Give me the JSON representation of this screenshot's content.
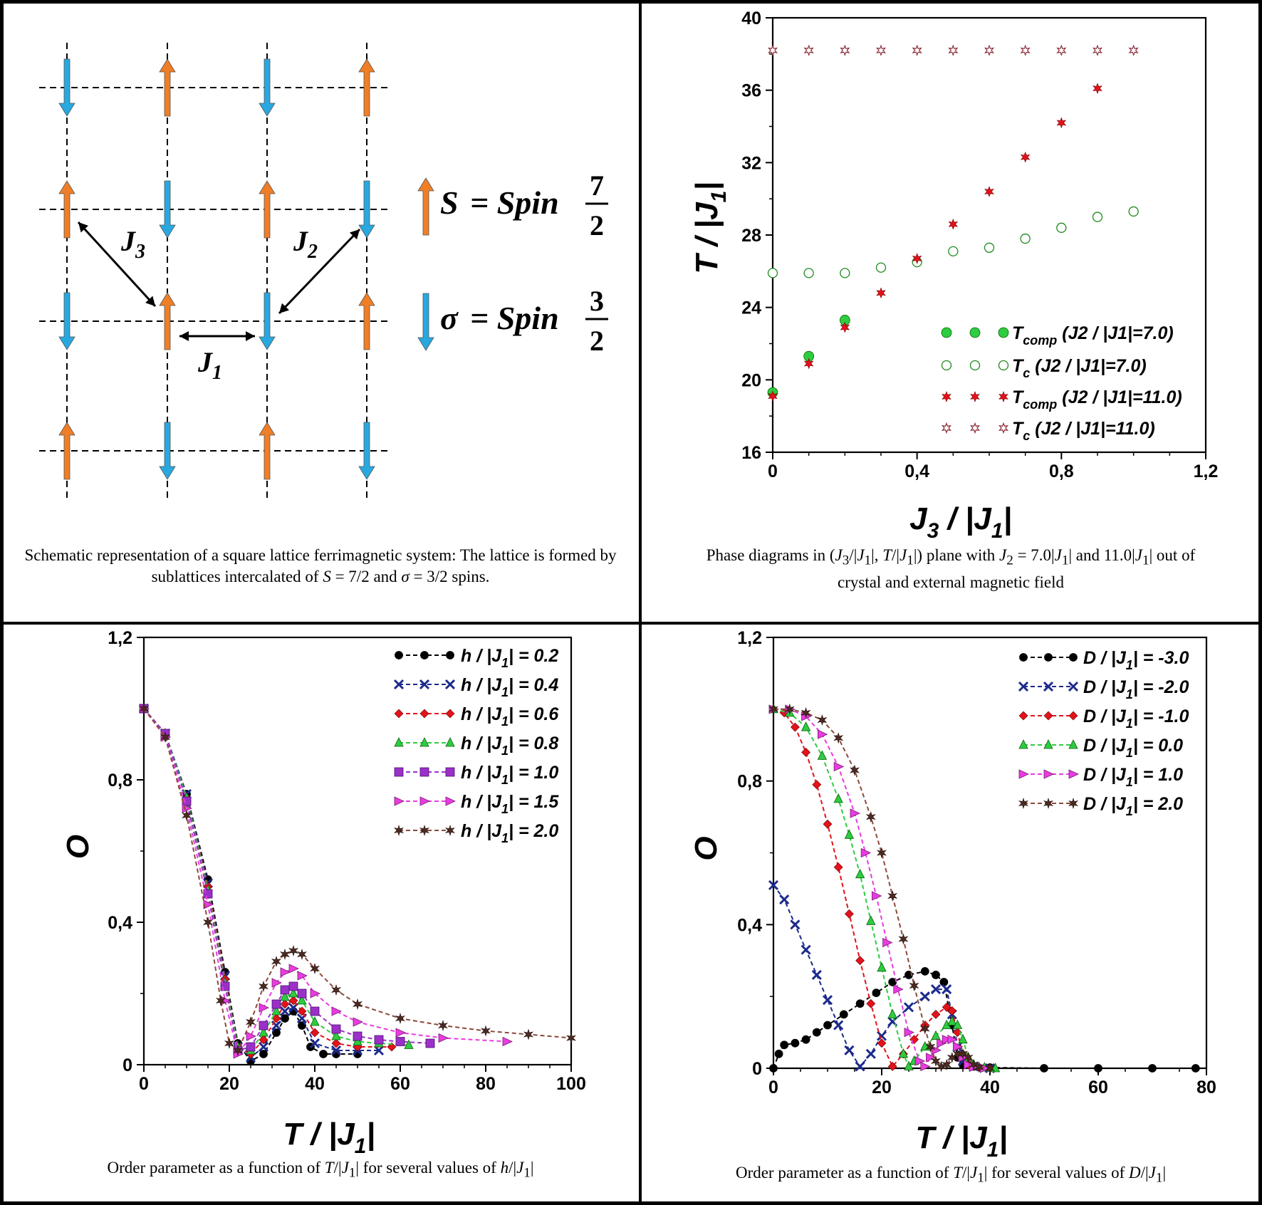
{
  "panels": {
    "top_left": {
      "caption_prefix": "Schematic representation of a square lattice ferrimagnetic system: The lattice is formed by sublattices intercalated of ",
      "caption_S": "S",
      "caption_S_value": " = 7/2",
      "caption_and": " and ",
      "caption_sigma": "σ",
      "caption_sigma_value": " = 3/2",
      "caption_suffix": " spins.",
      "couplings": {
        "J1": "J",
        "J1_sub": "1",
        "J2": "J",
        "J2_sub": "2",
        "J3": "J",
        "J3_sub": "3"
      },
      "legend": {
        "s_symbol": "S",
        "s_eq": "= Spin",
        "s_num": "7",
        "s_den": "2",
        "sigma_symbol": "σ",
        "sigma_eq": "= Spin",
        "sigma_num": "3",
        "sigma_den": "2"
      },
      "colors": {
        "spin_S": "#F07E26",
        "spin_sigma": "#29A8E0"
      }
    },
    "top_right": {
      "caption_line1_a": "Phase diagrams in (",
      "caption_line1_b": "J",
      "caption_line1_c": "3",
      "caption_line1_d": "/|",
      "caption_line1_e": "J",
      "caption_line1_f": "1",
      "caption_line1_g": "|, ",
      "caption_line1_h": "T",
      "caption_line1_i": "/|",
      "caption_line1_j": "J",
      "caption_line1_k": "1",
      "caption_line1_l": "|) plane with ",
      "caption_line1_m": "J",
      "caption_line1_n": "2",
      "caption_line1_o": " = 7.0|",
      "caption_line1_p": "J",
      "caption_line1_q": "1",
      "caption_line1_r": "| and 11.0|",
      "caption_line1_s": "J",
      "caption_line1_t": "1",
      "caption_line1_u": "| out of",
      "caption_line2": "crystal and external magnetic field"
    },
    "bottom_left": {
      "caption_a": "Order parameter as a function of ",
      "caption_b": "T",
      "caption_c": "/|",
      "caption_d": "J",
      "caption_e": "1",
      "caption_f": "|  for several values of ",
      "caption_g": "h",
      "caption_h": "/|",
      "caption_i": "J",
      "caption_j": "1",
      "caption_k": "|"
    },
    "bottom_right": {
      "caption_a": "Order parameter as a function of ",
      "caption_b": "T",
      "caption_c": "/|",
      "caption_d": "J",
      "caption_e": "1",
      "caption_f": "|  for several values of ",
      "caption_g": "D",
      "caption_h": "/|",
      "caption_i": "J",
      "caption_j": "1",
      "caption_k": "|"
    }
  },
  "chart_data": [
    {
      "id": "phase",
      "type": "scatter",
      "xlabel": "J3 / |J1|",
      "ylabel": "T / |J1|",
      "xlim": [
        0,
        1.2
      ],
      "ylim": [
        16,
        40
      ],
      "xticks": [
        "0",
        "0,4",
        "0,8",
        "1,2"
      ],
      "xtick_values": [
        0,
        0.4,
        0.8,
        1.2
      ],
      "yticks": [
        "16",
        "20",
        "24",
        "28",
        "32",
        "36",
        "40"
      ],
      "ytick_values": [
        16,
        20,
        24,
        28,
        32,
        36,
        40
      ],
      "legend_position": "bottom-right",
      "series": [
        {
          "name": "T",
          "sub": "comp",
          "rest": " (J2 / |J1|=7.0)",
          "marker": "circle-filled",
          "color": "#2ECC40",
          "x": [
            0,
            0.1,
            0.2
          ],
          "y": [
            19.3,
            21.3,
            23.3
          ]
        },
        {
          "name": "T",
          "sub": "c",
          "rest": " (J2 / |J1|=7.0)",
          "marker": "circle-open",
          "color": "#1E8B1E",
          "x": [
            0,
            0.1,
            0.2,
            0.3,
            0.4,
            0.5,
            0.6,
            0.7,
            0.8,
            0.9,
            1.0
          ],
          "y": [
            25.9,
            25.9,
            25.9,
            26.2,
            26.5,
            27.1,
            27.3,
            27.8,
            28.4,
            29.0,
            29.3
          ]
        },
        {
          "name": "T",
          "sub": "comp",
          "rest": " (J2 / |J1|=11.0)",
          "marker": "star-filled",
          "color": "#E3121B",
          "x": [
            0,
            0.1,
            0.2,
            0.3,
            0.4,
            0.5,
            0.6,
            0.7,
            0.8,
            0.9
          ],
          "y": [
            19.1,
            20.9,
            22.9,
            24.8,
            26.7,
            28.6,
            30.4,
            32.3,
            34.2,
            36.1
          ]
        },
        {
          "name": "T",
          "sub": "c",
          "rest": " (J2 / |J1|=11.0)",
          "marker": "star-open",
          "color": "#8B2F3A",
          "x": [
            0,
            0.1,
            0.2,
            0.3,
            0.4,
            0.5,
            0.6,
            0.7,
            0.8,
            0.9,
            1.0
          ],
          "y": [
            38.2,
            38.2,
            38.2,
            38.2,
            38.2,
            38.2,
            38.2,
            38.2,
            38.2,
            38.2,
            38.2
          ]
        }
      ]
    },
    {
      "id": "hfield",
      "type": "line",
      "xlabel": "T / |J1|",
      "ylabel": "O",
      "xlim": [
        0,
        100
      ],
      "ylim": [
        0,
        1.2
      ],
      "xticks": [
        "0",
        "20",
        "40",
        "60",
        "80",
        "100"
      ],
      "xtick_values": [
        0,
        20,
        40,
        60,
        80,
        100
      ],
      "yticks": [
        "0",
        "0,4",
        "0,8",
        "1,2"
      ],
      "ytick_values": [
        0,
        0.4,
        0.8,
        1.2
      ],
      "legend_position": "top-right",
      "series": [
        {
          "param": "h",
          "value": "0.2",
          "marker": "circle",
          "color": "#000000",
          "dash": "#000000",
          "x": [
            0,
            5,
            10,
            15,
            19,
            22,
            25,
            28,
            31,
            33,
            35,
            37,
            39,
            42,
            45,
            50
          ],
          "y": [
            1.0,
            0.93,
            0.76,
            0.52,
            0.26,
            0.06,
            0.01,
            0.03,
            0.09,
            0.13,
            0.15,
            0.11,
            0.05,
            0.03,
            0.03,
            0.03
          ]
        },
        {
          "param": "h",
          "value": "0.4",
          "marker": "cross",
          "color": "#1C2A8C",
          "dash": "#1C2A8C",
          "x": [
            0,
            5,
            10,
            15,
            19,
            22,
            25,
            28,
            31,
            33,
            35,
            37,
            40,
            45,
            50,
            55
          ],
          "y": [
            1.0,
            0.93,
            0.76,
            0.51,
            0.25,
            0.05,
            0.02,
            0.05,
            0.11,
            0.15,
            0.16,
            0.13,
            0.06,
            0.04,
            0.04,
            0.04
          ]
        },
        {
          "param": "h",
          "value": "0.6",
          "marker": "diamond",
          "color": "#E3121B",
          "dash": "#E3121B",
          "x": [
            0,
            5,
            10,
            15,
            19,
            22,
            25,
            28,
            31,
            33,
            35,
            37,
            40,
            45,
            50,
            58
          ],
          "y": [
            1.0,
            0.93,
            0.75,
            0.5,
            0.24,
            0.05,
            0.03,
            0.07,
            0.13,
            0.17,
            0.18,
            0.15,
            0.09,
            0.06,
            0.05,
            0.05
          ]
        },
        {
          "param": "h",
          "value": "0.8",
          "marker": "triangle",
          "color": "#2ECC40",
          "dash": "#2ECC40",
          "x": [
            0,
            5,
            10,
            15,
            19,
            22,
            25,
            28,
            31,
            33,
            35,
            37,
            40,
            45,
            50,
            55,
            62
          ],
          "y": [
            1.0,
            0.93,
            0.75,
            0.49,
            0.23,
            0.05,
            0.04,
            0.09,
            0.15,
            0.19,
            0.2,
            0.18,
            0.12,
            0.08,
            0.065,
            0.06,
            0.055
          ]
        },
        {
          "param": "h",
          "value": "1.0",
          "marker": "square",
          "color": "#9B30C8",
          "dash": "#9B30C8",
          "x": [
            0,
            5,
            10,
            15,
            19,
            22,
            25,
            28,
            31,
            33,
            35,
            37,
            40,
            45,
            50,
            55,
            60,
            67
          ],
          "y": [
            1.0,
            0.93,
            0.74,
            0.48,
            0.22,
            0.04,
            0.05,
            0.11,
            0.17,
            0.21,
            0.22,
            0.2,
            0.15,
            0.1,
            0.08,
            0.07,
            0.065,
            0.06
          ]
        },
        {
          "param": "h",
          "value": "1.5",
          "marker": "triangle-right",
          "color": "#E83CE0",
          "dash": "#E83CE0",
          "x": [
            0,
            5,
            10,
            15,
            19,
            22,
            25,
            28,
            31,
            33,
            35,
            37,
            40,
            45,
            50,
            60,
            70,
            85
          ],
          "y": [
            1.0,
            0.92,
            0.72,
            0.45,
            0.18,
            0.03,
            0.08,
            0.16,
            0.23,
            0.26,
            0.27,
            0.25,
            0.2,
            0.15,
            0.12,
            0.09,
            0.075,
            0.065
          ]
        },
        {
          "param": "h",
          "value": "2.0",
          "marker": "star",
          "color": "#4A2A22",
          "dash": "#8B4A3A",
          "x": [
            0,
            5,
            10,
            15,
            18,
            20,
            22,
            25,
            28,
            31,
            33,
            35,
            37,
            40,
            45,
            50,
            60,
            70,
            80,
            90,
            100
          ],
          "y": [
            1.0,
            0.92,
            0.7,
            0.4,
            0.18,
            0.06,
            0.04,
            0.12,
            0.22,
            0.29,
            0.31,
            0.32,
            0.31,
            0.27,
            0.21,
            0.17,
            0.13,
            0.11,
            0.095,
            0.085,
            0.075
          ]
        }
      ]
    },
    {
      "id": "dfield",
      "type": "line",
      "xlabel": "T / |J1|",
      "ylabel": "O",
      "xlim": [
        0,
        80
      ],
      "ylim": [
        0,
        1.2
      ],
      "xticks": [
        "0",
        "20",
        "40",
        "60",
        "80"
      ],
      "xtick_values": [
        0,
        20,
        40,
        60,
        80
      ],
      "yticks": [
        "0",
        "0,4",
        "0,8",
        "1,2"
      ],
      "ytick_values": [
        0,
        0.4,
        0.8,
        1.2
      ],
      "legend_position": "top-right",
      "series": [
        {
          "param": "D",
          "value": "-3.0",
          "marker": "circle",
          "color": "#000000",
          "dash": "#000000",
          "x": [
            0,
            1,
            2,
            4,
            6,
            8,
            10,
            13,
            16,
            19,
            22,
            25,
            28,
            30,
            31.5,
            33,
            34,
            35,
            37,
            40,
            50,
            60,
            70,
            78
          ],
          "y": [
            0,
            0.04,
            0.065,
            0.07,
            0.08,
            0.1,
            0.12,
            0.15,
            0.18,
            0.21,
            0.24,
            0.26,
            0.27,
            0.26,
            0.24,
            0.12,
            0.03,
            0.01,
            0.005,
            0.002,
            0,
            0,
            0,
            0
          ]
        },
        {
          "param": "D",
          "value": "-2.0",
          "marker": "cross",
          "color": "#1C2A8C",
          "dash": "#1C2A8C",
          "x": [
            0,
            2,
            4,
            6,
            8,
            10,
            12,
            14,
            16,
            18,
            20,
            22,
            25,
            28,
            30,
            32,
            33,
            34,
            35,
            37,
            40
          ],
          "y": [
            0.51,
            0.47,
            0.4,
            0.33,
            0.26,
            0.19,
            0.12,
            0.05,
            0.005,
            0.04,
            0.09,
            0.13,
            0.17,
            0.2,
            0.22,
            0.22,
            0.15,
            0.06,
            0.02,
            0.005,
            0
          ]
        },
        {
          "param": "D",
          "value": "-1.0",
          "marker": "diamond",
          "color": "#E3121B",
          "dash": "#E3121B",
          "x": [
            0,
            2,
            4,
            6,
            8,
            10,
            12,
            14,
            16,
            18,
            20,
            22,
            24,
            26,
            28,
            30,
            32,
            33,
            34,
            35,
            36,
            38,
            40
          ],
          "y": [
            1.0,
            0.99,
            0.95,
            0.88,
            0.79,
            0.68,
            0.56,
            0.43,
            0.3,
            0.18,
            0.07,
            0.005,
            0.04,
            0.08,
            0.12,
            0.15,
            0.17,
            0.16,
            0.1,
            0.04,
            0.01,
            0.002,
            0
          ]
        },
        {
          "param": "D",
          "value": "0.0",
          "marker": "triangle",
          "color": "#2ECC40",
          "dash": "#2ECC40",
          "x": [
            0,
            3,
            6,
            9,
            12,
            14,
            16,
            18,
            20,
            22,
            24,
            25,
            26,
            28,
            30,
            32,
            33,
            34,
            35,
            36,
            37,
            39,
            41
          ],
          "y": [
            1.0,
            0.99,
            0.95,
            0.87,
            0.75,
            0.65,
            0.54,
            0.41,
            0.28,
            0.15,
            0.04,
            0.005,
            0.02,
            0.06,
            0.09,
            0.12,
            0.13,
            0.12,
            0.08,
            0.03,
            0.01,
            0.002,
            0
          ]
        },
        {
          "param": "D",
          "value": "1.0",
          "marker": "triangle-right",
          "color": "#E83CE0",
          "dash": "#E83CE0",
          "x": [
            0,
            3,
            6,
            9,
            12,
            15,
            17,
            19,
            21,
            23,
            25,
            27,
            28,
            29,
            30,
            31,
            32,
            33,
            34,
            35,
            36,
            37,
            39
          ],
          "y": [
            1.0,
            1.0,
            0.98,
            0.93,
            0.84,
            0.71,
            0.6,
            0.48,
            0.35,
            0.22,
            0.1,
            0.02,
            0.005,
            0.03,
            0.05,
            0.07,
            0.08,
            0.08,
            0.06,
            0.03,
            0.01,
            0.003,
            0
          ]
        },
        {
          "param": "D",
          "value": "2.0",
          "marker": "star",
          "color": "#4A2A22",
          "dash": "#8B4A3A",
          "x": [
            0,
            3,
            6,
            9,
            12,
            15,
            18,
            20,
            22,
            24,
            26,
            28,
            29,
            30,
            31,
            32,
            33,
            34,
            35,
            36,
            37,
            38,
            40
          ],
          "y": [
            1.0,
            1.0,
            0.99,
            0.97,
            0.92,
            0.83,
            0.7,
            0.6,
            0.48,
            0.36,
            0.23,
            0.11,
            0.06,
            0.02,
            0.005,
            0.01,
            0.03,
            0.04,
            0.04,
            0.03,
            0.01,
            0.003,
            0
          ]
        }
      ]
    }
  ]
}
